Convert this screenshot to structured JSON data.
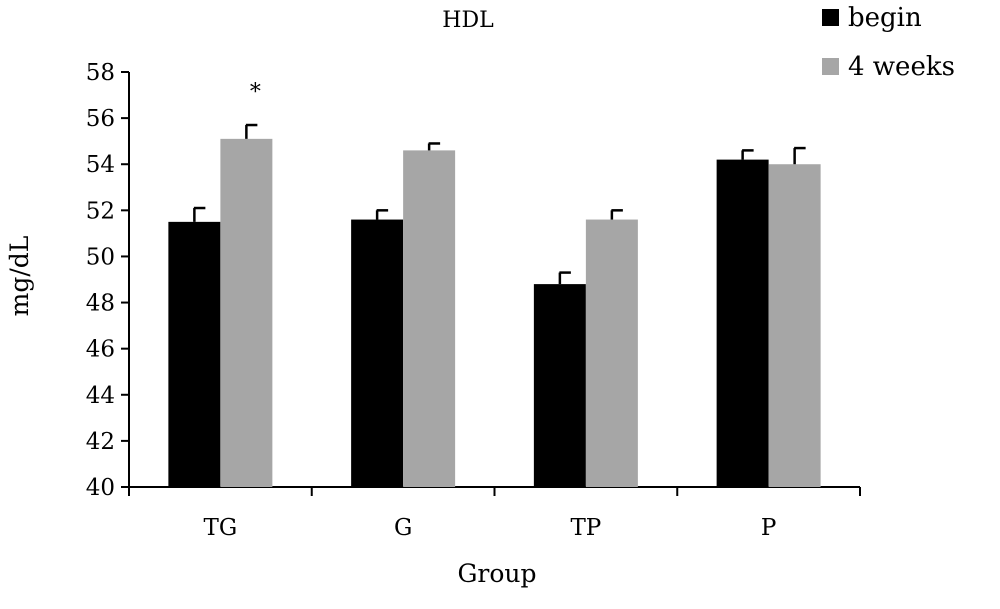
{
  "chart_data": {
    "type": "bar",
    "title": "HDL",
    "xlabel": "Group",
    "ylabel": "mg/dL",
    "categories": [
      "TG",
      "G",
      "TP",
      "P"
    ],
    "ylim": [
      40,
      58
    ],
    "yticks": [
      40,
      42,
      44,
      46,
      48,
      50,
      52,
      54,
      56,
      58
    ],
    "grid": false,
    "legend_position": "top-right",
    "series": [
      {
        "name": "begin",
        "color": "#000000",
        "values": [
          51.5,
          51.6,
          48.8,
          54.2
        ],
        "errors": [
          0.6,
          0.4,
          0.5,
          0.4
        ]
      },
      {
        "name": "4 weeks",
        "color": "#a6a6a6",
        "values": [
          55.1,
          54.6,
          51.6,
          54.0
        ],
        "errors": [
          0.6,
          0.3,
          0.4,
          0.7
        ]
      }
    ],
    "annotations": [
      {
        "text": "*",
        "category": "TG",
        "series": "4 weeks"
      }
    ]
  }
}
